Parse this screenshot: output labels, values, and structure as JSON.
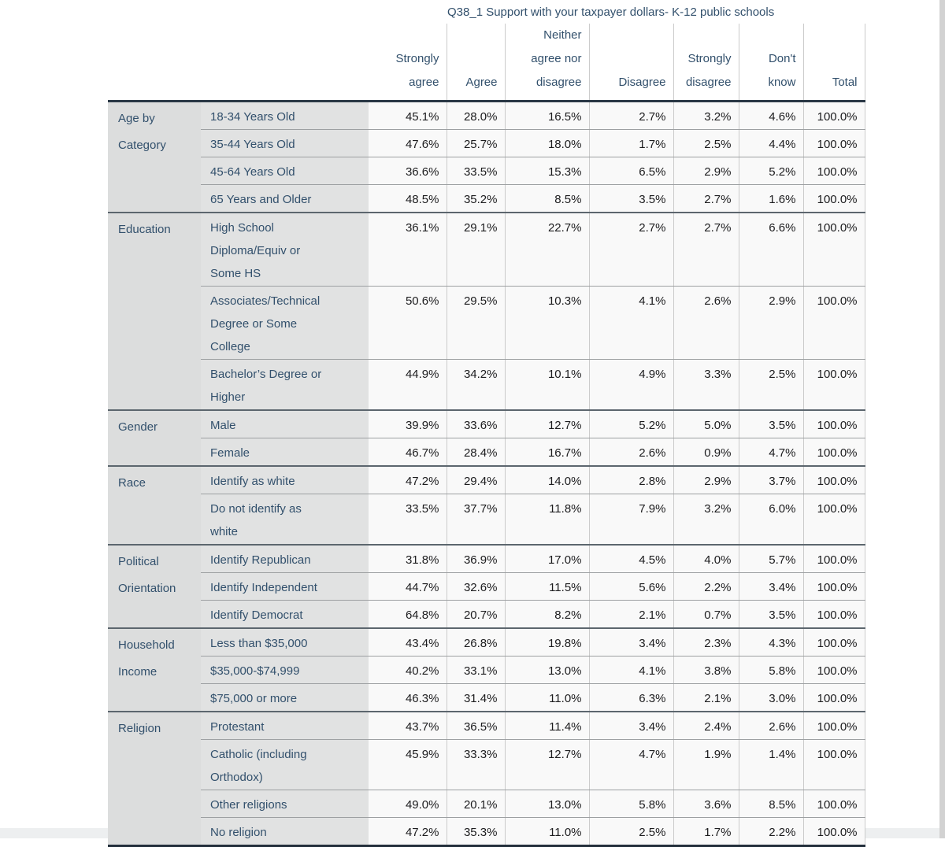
{
  "title": "Q38_1 Support with your taxpayer dollars- K-12 public schools",
  "colors": {
    "page_bg": "#ffffff",
    "footer_bg": "#edeff0",
    "scrollbar_track": "#d2d2d2",
    "header_rule": "#2a3845",
    "table_end_rule": "#232f3b",
    "group_rule": "#5c666e",
    "row_rule": "#9da0a2",
    "col_rule": "#cbcbcb",
    "category_bg": "#dcdddd",
    "subcategory_bg": "#e1e2e2",
    "data_bg": "#f9f9f9",
    "slate_text": "#32506c",
    "value_text": "#1c1c1e"
  },
  "table": {
    "column_headers": [
      {
        "label": "Strongly agree",
        "lines": [
          "Strongly",
          "agree"
        ]
      },
      {
        "label": "Agree",
        "lines": [
          "Agree"
        ]
      },
      {
        "label": "Neither agree nor disagree",
        "lines": [
          "Neither",
          "agree nor",
          "disagree"
        ]
      },
      {
        "label": "Disagree",
        "lines": [
          "Disagree"
        ]
      },
      {
        "label": "Strongly disagree",
        "lines": [
          "Strongly",
          "disagree"
        ]
      },
      {
        "label": "Don't know",
        "lines": [
          "Don't",
          "know"
        ]
      },
      {
        "label": "Total",
        "lines": [
          "Total"
        ]
      }
    ],
    "groups": [
      {
        "category": "Age by Category",
        "category_lines": [
          "Age by",
          "Category"
        ],
        "rows": [
          {
            "label": "18-34 Years Old",
            "values": [
              "45.1%",
              "28.0%",
              "16.5%",
              "2.7%",
              "3.2%",
              "4.6%",
              "100.0%"
            ]
          },
          {
            "label": "35-44 Years Old",
            "values": [
              "47.6%",
              "25.7%",
              "18.0%",
              "1.7%",
              "2.5%",
              "4.4%",
              "100.0%"
            ]
          },
          {
            "label": "45-64 Years Old",
            "values": [
              "36.6%",
              "33.5%",
              "15.3%",
              "6.5%",
              "2.9%",
              "5.2%",
              "100.0%"
            ]
          },
          {
            "label": "65 Years and Older",
            "values": [
              "48.5%",
              "35.2%",
              "8.5%",
              "3.5%",
              "2.7%",
              "1.6%",
              "100.0%"
            ]
          }
        ]
      },
      {
        "category": "Education",
        "rows": [
          {
            "label": "High School Diploma/Equiv or Some HS",
            "lines": [
              "High School",
              "Diploma/Equiv or",
              "Some HS"
            ],
            "values": [
              "36.1%",
              "29.1%",
              "22.7%",
              "2.7%",
              "2.7%",
              "6.6%",
              "100.0%"
            ]
          },
          {
            "label": "Associates/Technical Degree or Some College",
            "lines": [
              "Associates/Technical",
              "Degree or Some",
              "College"
            ],
            "values": [
              "50.6%",
              "29.5%",
              "10.3%",
              "4.1%",
              "2.6%",
              "2.9%",
              "100.0%"
            ]
          },
          {
            "label": "Bachelor’s Degree or Higher",
            "lines": [
              "Bachelor’s Degree or",
              "Higher"
            ],
            "values": [
              "44.9%",
              "34.2%",
              "10.1%",
              "4.9%",
              "3.3%",
              "2.5%",
              "100.0%"
            ]
          }
        ]
      },
      {
        "category": "Gender",
        "rows": [
          {
            "label": "Male",
            "values": [
              "39.9%",
              "33.6%",
              "12.7%",
              "5.2%",
              "5.0%",
              "3.5%",
              "100.0%"
            ]
          },
          {
            "label": "Female",
            "values": [
              "46.7%",
              "28.4%",
              "16.7%",
              "2.6%",
              "0.9%",
              "4.7%",
              "100.0%"
            ]
          }
        ]
      },
      {
        "category": "Race",
        "rows": [
          {
            "label": "Identify as white",
            "values": [
              "47.2%",
              "29.4%",
              "14.0%",
              "2.8%",
              "2.9%",
              "3.7%",
              "100.0%"
            ]
          },
          {
            "label": "Do not identify as white",
            "lines": [
              "Do not identify as",
              "white"
            ],
            "values": [
              "33.5%",
              "37.7%",
              "11.8%",
              "7.9%",
              "3.2%",
              "6.0%",
              "100.0%"
            ]
          }
        ]
      },
      {
        "category": "Political Orientation",
        "category_lines": [
          "Political",
          "Orientation"
        ],
        "rows": [
          {
            "label": "Identify Republican",
            "values": [
              "31.8%",
              "36.9%",
              "17.0%",
              "4.5%",
              "4.0%",
              "5.7%",
              "100.0%"
            ]
          },
          {
            "label": "Identify Independent",
            "values": [
              "44.7%",
              "32.6%",
              "11.5%",
              "5.6%",
              "2.2%",
              "3.4%",
              "100.0%"
            ]
          },
          {
            "label": "Identify Democrat",
            "values": [
              "64.8%",
              "20.7%",
              "8.2%",
              "2.1%",
              "0.7%",
              "3.5%",
              "100.0%"
            ]
          }
        ]
      },
      {
        "category": "Household Income",
        "category_lines": [
          "Household",
          "Income"
        ],
        "rows": [
          {
            "label": "Less than $35,000",
            "values": [
              "43.4%",
              "26.8%",
              "19.8%",
              "3.4%",
              "2.3%",
              "4.3%",
              "100.0%"
            ]
          },
          {
            "label": "$35,000-$74,999",
            "values": [
              "40.2%",
              "33.1%",
              "13.0%",
              "4.1%",
              "3.8%",
              "5.8%",
              "100.0%"
            ]
          },
          {
            "label": "$75,000 or more",
            "values": [
              "46.3%",
              "31.4%",
              "11.0%",
              "6.3%",
              "2.1%",
              "3.0%",
              "100.0%"
            ]
          }
        ]
      },
      {
        "category": "Religion",
        "rows": [
          {
            "label": "Protestant",
            "values": [
              "43.7%",
              "36.5%",
              "11.4%",
              "3.4%",
              "2.4%",
              "2.6%",
              "100.0%"
            ]
          },
          {
            "label": "Catholic (including Orthodox)",
            "lines": [
              "Catholic (including",
              "Orthodox)"
            ],
            "values": [
              "45.9%",
              "33.3%",
              "12.7%",
              "4.7%",
              "1.9%",
              "1.4%",
              "100.0%"
            ]
          },
          {
            "label": "Other religions",
            "values": [
              "49.0%",
              "20.1%",
              "13.0%",
              "5.8%",
              "3.6%",
              "8.5%",
              "100.0%"
            ]
          },
          {
            "label": "No religion",
            "values": [
              "47.2%",
              "35.3%",
              "11.0%",
              "2.5%",
              "1.7%",
              "2.2%",
              "100.0%"
            ]
          }
        ]
      }
    ]
  }
}
